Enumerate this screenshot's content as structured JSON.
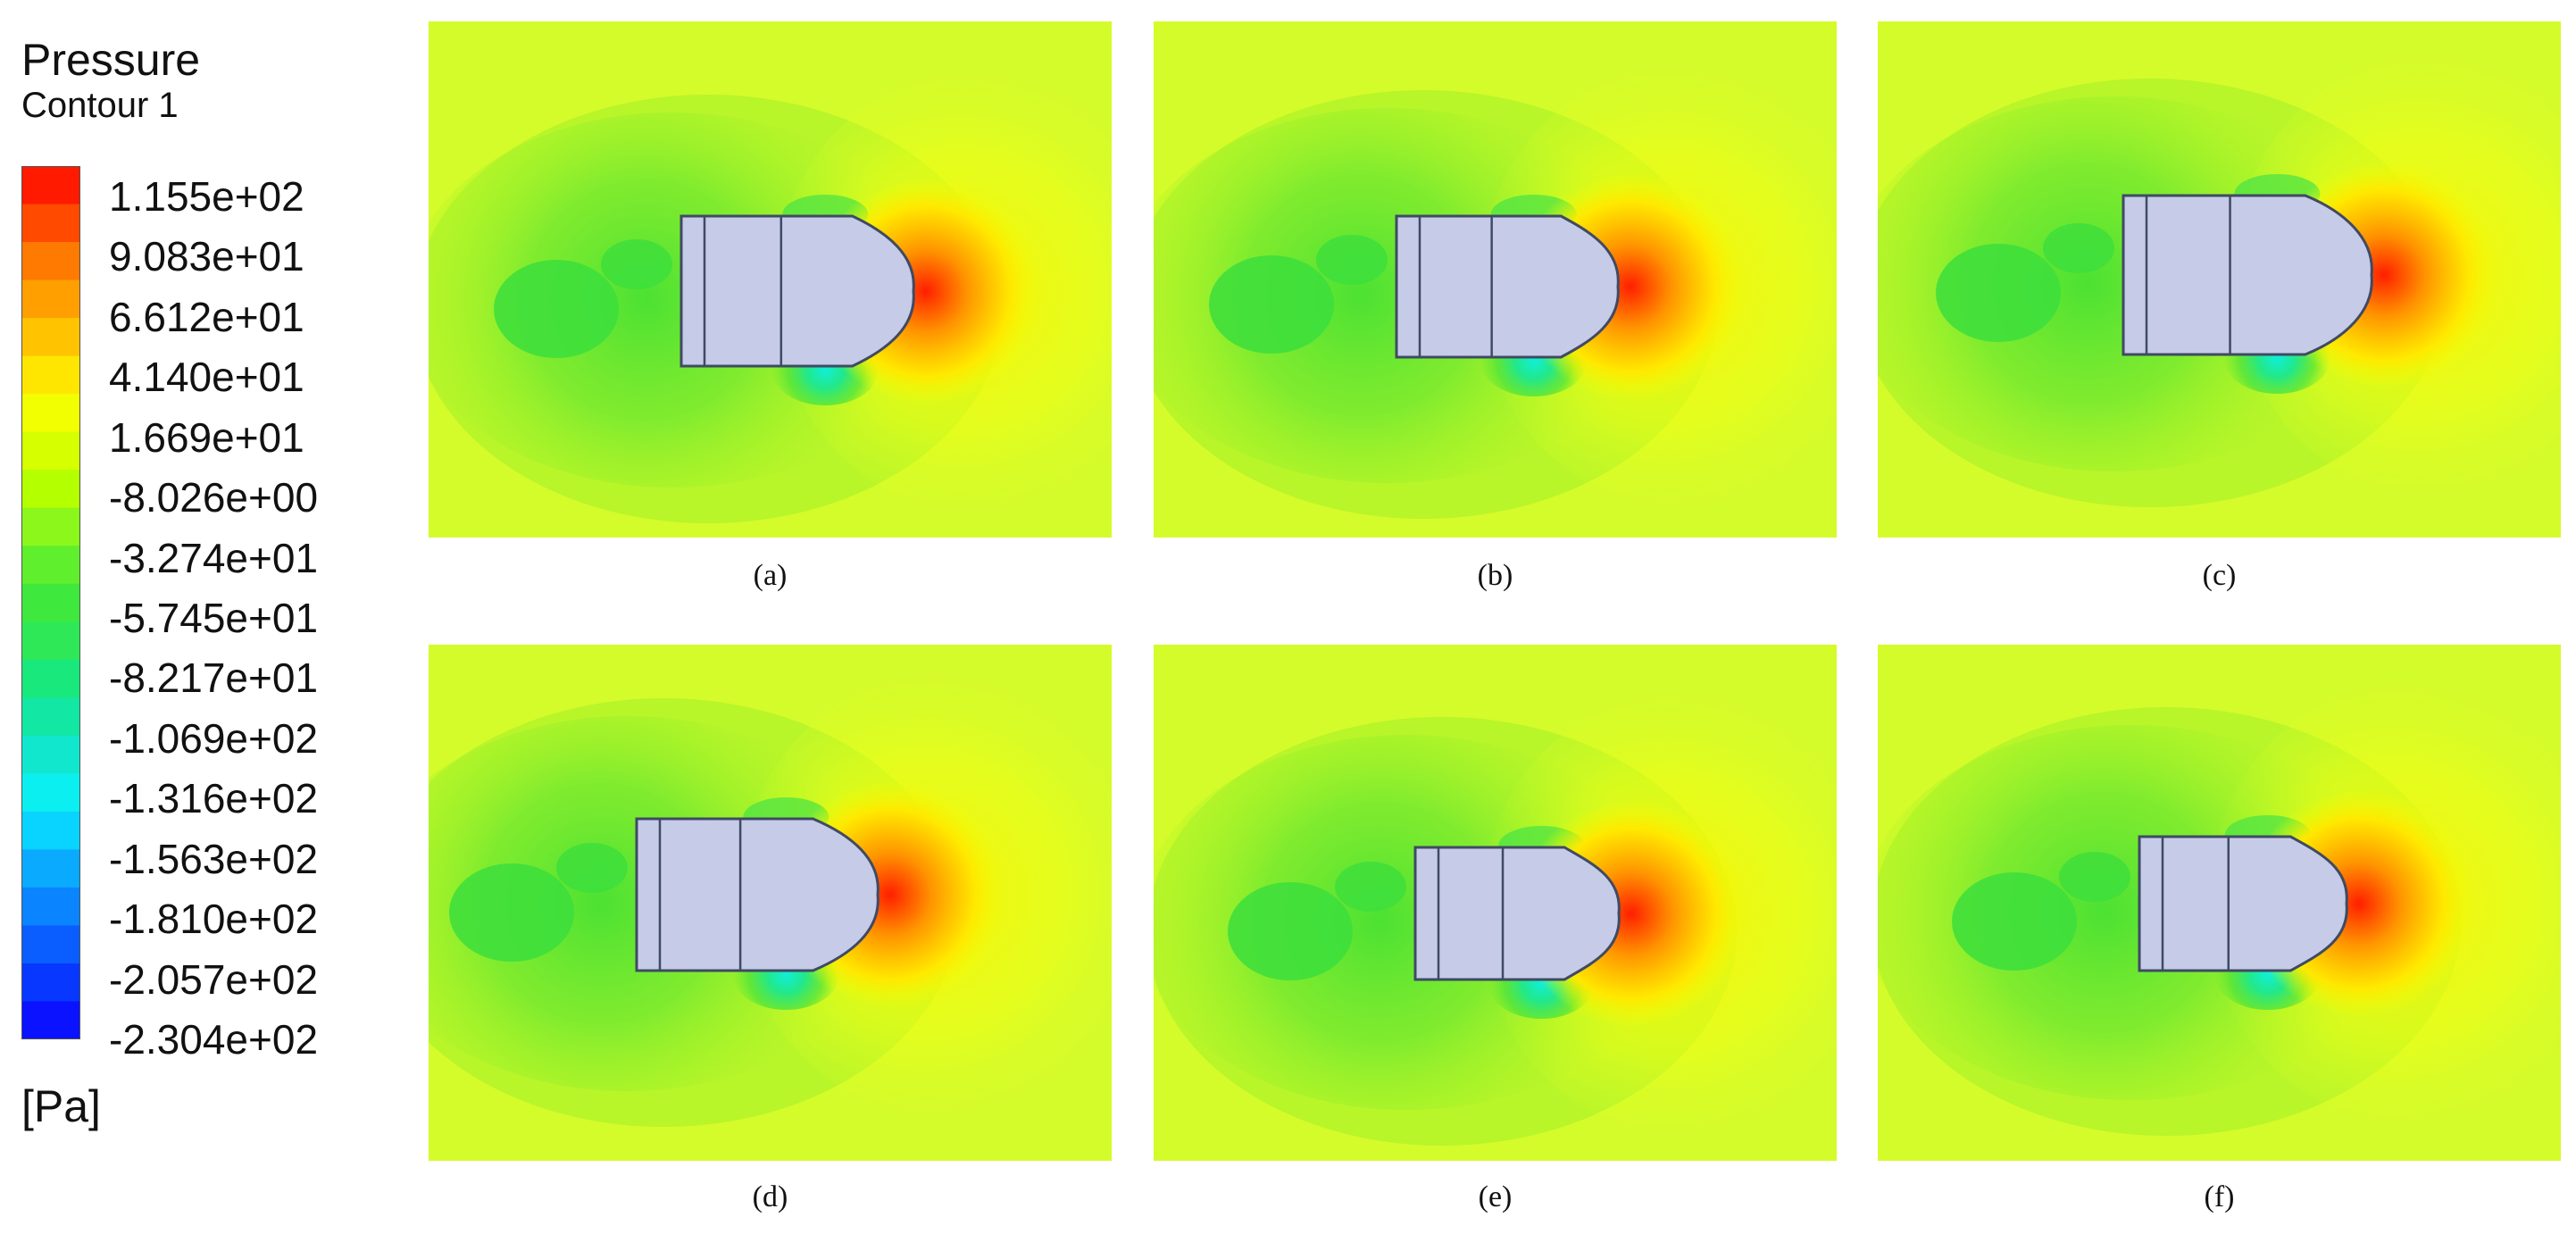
{
  "legend": {
    "title": "Pressure",
    "subtitle": "Contour 1",
    "unit": "[Pa]",
    "labels": [
      "1.155e+02",
      "9.083e+01",
      "6.612e+01",
      "4.140e+01",
      "1.669e+01",
      "-8.026e+00",
      "-3.274e+01",
      "-5.745e+01",
      "-8.217e+01",
      "-1.069e+02",
      "-1.316e+02",
      "-1.563e+02",
      "-1.810e+02",
      "-2.057e+02",
      "-2.304e+02"
    ],
    "colors": [
      "#ff1a00",
      "#ff4a00",
      "#ff7a00",
      "#ff9f00",
      "#ffc300",
      "#ffe600",
      "#f2ff00",
      "#d6ff00",
      "#b4ff00",
      "#8cf71a",
      "#5fef2c",
      "#3fe83c",
      "#2ee858",
      "#19e87c",
      "#12e7a3",
      "#10e7cd",
      "#0ceff0",
      "#08d4ff",
      "#0aaaff",
      "#0a84ff",
      "#0a5eff",
      "#0838ff",
      "#0a12ff"
    ]
  },
  "panels": [
    {
      "caption": "(a)"
    },
    {
      "caption": "(b)"
    },
    {
      "caption": "(c)"
    },
    {
      "caption": "(d)"
    },
    {
      "caption": "(e)"
    },
    {
      "caption": "(f)"
    }
  ],
  "colors": {
    "background_field": "#d4fb2a",
    "body_fill": "#c6cbe8",
    "body_stroke": "#3f4a63",
    "wake_green": "#56e23a",
    "stagnation_red": "#ff1f00"
  }
}
